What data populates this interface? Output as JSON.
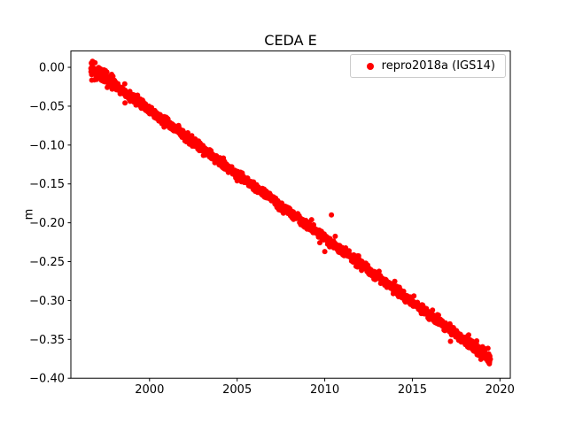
{
  "title": "CEDA E",
  "ylabel": "m",
  "legend": {
    "label": "repro2018a (IGS14)",
    "marker_color": "#ff0000"
  },
  "chart_data": {
    "type": "scatter",
    "title": "CEDA E",
    "xlabel": "",
    "ylabel": "m",
    "grid": false,
    "legend_position": "upper right",
    "xlim": [
      1995.51,
      2020.59
    ],
    "ylim": [
      -0.4,
      0.021
    ],
    "xticks": [
      2000,
      2005,
      2010,
      2015,
      2020
    ],
    "yticks": [
      0.0,
      -0.05,
      -0.1,
      -0.15,
      -0.2,
      -0.25,
      -0.3,
      -0.35,
      -0.4
    ],
    "series": [
      {
        "name": "repro2018a (IGS14)",
        "color": "#ff0000",
        "marker": "dot",
        "x_start": 1996.65,
        "x_end": 2019.45,
        "trend_start_y": 0.0,
        "trend_end_y": -0.375,
        "trend_slope_m_per_yr": -0.016447,
        "noise_std_m": 0.0028,
        "n_points": 1700,
        "outliers": [
          {
            "x": 2010.38,
            "y": -0.19
          },
          {
            "x": 2010.0,
            "y": -0.237
          }
        ]
      }
    ]
  }
}
